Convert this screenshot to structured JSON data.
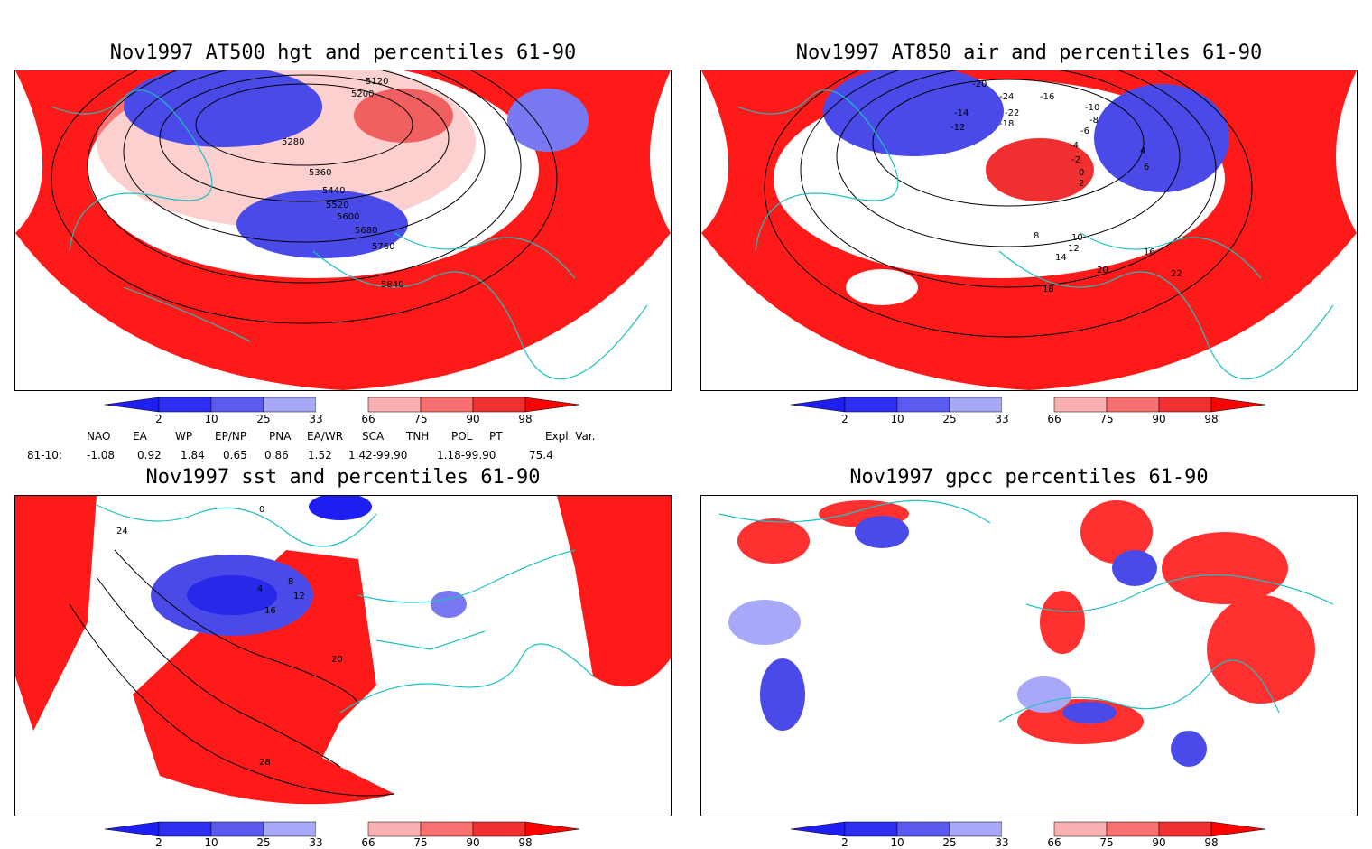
{
  "panels": [
    {
      "title": "Nov1997 AT500 hgt and percentiles 61-90",
      "contour_labels": [
        "5120",
        "5200",
        "5280",
        "5360",
        "5440",
        "5520",
        "5600",
        "5680",
        "5760",
        "5840"
      ]
    },
    {
      "title": "Nov1997 AT850 air and percentiles 61-90",
      "contour_labels": [
        "-20",
        "-24",
        "-22",
        "-18",
        "-16",
        "-14",
        "-12",
        "-10",
        "-8",
        "-6",
        "-4",
        "-2",
        "0",
        "2",
        "4",
        "6",
        "8",
        "10",
        "12",
        "14",
        "16",
        "18",
        "20",
        "22"
      ]
    },
    {
      "title": "Nov1997 sst and percentiles 61-90",
      "contour_labels": [
        "0",
        "4",
        "8",
        "12",
        "16",
        "20",
        "24",
        "28"
      ]
    },
    {
      "title": "Nov1997 gpcc percentiles 61-90",
      "contour_labels": []
    }
  ],
  "colorbar": {
    "labels": [
      "2",
      "10",
      "25",
      "33",
      "66",
      "75",
      "90",
      "98"
    ],
    "colors": [
      "#1e1ef0",
      "#4848f0",
      "#7878f0",
      "#a8a8f8",
      "#ffffff",
      "#f8b0b0",
      "#f87070",
      "#f03030",
      "#ff0000"
    ]
  },
  "indices": {
    "headers": [
      "NAO",
      "EA",
      "WP",
      "EP/NP",
      "PNA",
      "EA/WR",
      "SCA",
      "TNH",
      "POL",
      "PT",
      "Expl. Var."
    ],
    "row_label": "81-10:",
    "values": [
      "-1.08",
      "0.92",
      "1.84",
      "0.65",
      "0.86",
      "1.52",
      "1.42-99.90",
      "1.18-99.90",
      "75.4"
    ]
  },
  "colors": {
    "coast": "#20c0c0",
    "warm": "#ff1a1a",
    "cold": "#3a3ae8"
  }
}
